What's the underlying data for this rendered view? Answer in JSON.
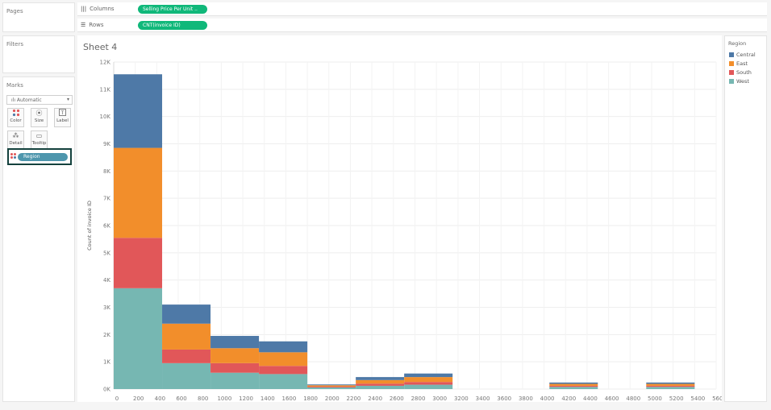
{
  "pages": {
    "title": "Pages"
  },
  "filters": {
    "title": "Filters"
  },
  "marks": {
    "title": "Marks",
    "mark_type": "Automatic",
    "buttons": {
      "color": "Color",
      "size": "Size",
      "label": "Label",
      "detail": "Detail",
      "tooltip": "Tooltip"
    },
    "region_pill": "Region"
  },
  "columns_shelf": {
    "label": "Columns",
    "pill": "Selling Price Per Unit .."
  },
  "rows_shelf": {
    "label": "Rows",
    "pill": "CNT(invoice ID)"
  },
  "sheet": {
    "title": "Sheet 4"
  },
  "legend": {
    "title": "Region",
    "items": [
      {
        "label": "Central",
        "color": "#4e79a7"
      },
      {
        "label": "East",
        "color": "#f28e2b"
      },
      {
        "label": "South",
        "color": "#e15759"
      },
      {
        "label": "West",
        "color": "#76b7b2"
      }
    ]
  },
  "chart_data": {
    "type": "bar",
    "stacked": true,
    "title": "Sheet 4",
    "xlabel": "",
    "ylabel": "Count of invoice ID",
    "ylim": [
      0,
      12000
    ],
    "yticks": [
      "0K",
      "1K",
      "2K",
      "3K",
      "4K",
      "5K",
      "6K",
      "7K",
      "8K",
      "9K",
      "10K",
      "11K",
      "12K"
    ],
    "xlim": [
      0,
      5600
    ],
    "xticks": [
      "0",
      "200",
      "400",
      "600",
      "800",
      "1000",
      "1200",
      "1400",
      "1600",
      "1800",
      "2000",
      "2200",
      "2400",
      "2600",
      "2800",
      "3000",
      "3200",
      "3400",
      "3600",
      "3800",
      "4000",
      "4200",
      "4400",
      "4600",
      "4800",
      "5000",
      "5200",
      "5400",
      "5600"
    ],
    "bins": [
      {
        "start": 0,
        "end": 450
      },
      {
        "start": 450,
        "end": 900
      },
      {
        "start": 900,
        "end": 1350
      },
      {
        "start": 1350,
        "end": 1800
      },
      {
        "start": 1800,
        "end": 2250
      },
      {
        "start": 2250,
        "end": 2700
      },
      {
        "start": 2700,
        "end": 3150
      },
      {
        "start": 4050,
        "end": 4500
      },
      {
        "start": 4950,
        "end": 5400
      }
    ],
    "series": [
      {
        "name": "West",
        "color": "#76b7b2",
        "values": [
          3700,
          950,
          600,
          550,
          60,
          120,
          160,
          80,
          80
        ]
      },
      {
        "name": "South",
        "color": "#e15759",
        "values": [
          1850,
          500,
          350,
          300,
          30,
          80,
          100,
          40,
          40
        ]
      },
      {
        "name": "East",
        "color": "#f28e2b",
        "values": [
          3300,
          950,
          550,
          500,
          50,
          130,
          180,
          70,
          70
        ]
      },
      {
        "name": "Central",
        "color": "#4e79a7",
        "values": [
          2700,
          700,
          450,
          400,
          30,
          110,
          130,
          50,
          50
        ]
      }
    ]
  }
}
